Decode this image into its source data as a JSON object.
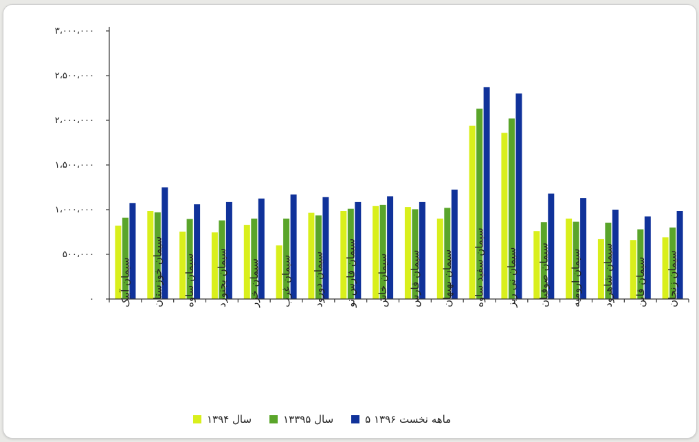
{
  "chart_data": {
    "type": "bar",
    "categories": [
      "سیمان آبیک",
      "سیمان خوزستان",
      "سیمان ساوه",
      "سیمان بجنورد",
      "سیمان خزر",
      "سیمان غرب",
      "سیمان دورود",
      "سیمان فارس نو",
      "سیمان خاش",
      "سیمان فارس",
      "سیمان بهبهان",
      "سیمان سفید ساوه",
      "سیمان نی ریز",
      "سیمان صوفیان",
      "سیمان ارومیه",
      "سیمان شاهرود",
      "سیمان قاین",
      "سیمان زنجان"
    ],
    "series": [
      {
        "name": "سال ۱۳۹۴",
        "color": "#d9ef1c",
        "values": [
          820000,
          985000,
          755000,
          745000,
          830000,
          600000,
          965000,
          985000,
          1040000,
          1030000,
          900000,
          1940000,
          1860000,
          760000,
          900000,
          670000,
          660000,
          690000
        ]
      },
      {
        "name": "سال ۱۳۳۹۵",
        "color": "#5aa52a",
        "values": [
          910000,
          970000,
          895000,
          880000,
          900000,
          900000,
          935000,
          1010000,
          1055000,
          1005000,
          1020000,
          2130000,
          2020000,
          860000,
          865000,
          855000,
          780000,
          800000
        ]
      },
      {
        "name": "۵ ماهه نخست ۱۳۹۶",
        "color": "#10329a",
        "values": [
          1075000,
          1250000,
          1060000,
          1085000,
          1125000,
          1170000,
          1140000,
          1085000,
          1150000,
          1085000,
          1225000,
          2370000,
          2300000,
          1180000,
          1130000,
          1000000,
          925000,
          985000
        ]
      }
    ],
    "ylim": [
      0,
      3000000
    ],
    "yticks": [
      {
        "value": 0,
        "label": "۰"
      },
      {
        "value": 500000,
        "label": "۵۰۰،۰۰۰"
      },
      {
        "value": 1000000,
        "label": "۱،۰۰۰،۰۰۰"
      },
      {
        "value": 1500000,
        "label": "۱،۵۰۰،۰۰۰"
      },
      {
        "value": 2000000,
        "label": "۲،۰۰۰،۰۰۰"
      },
      {
        "value": 2500000,
        "label": "۲،۵۰۰،۰۰۰"
      },
      {
        "value": 3000000,
        "label": "۳،۰۰۰،۰۰۰"
      }
    ],
    "grid": false,
    "legend_position": "bottom"
  }
}
